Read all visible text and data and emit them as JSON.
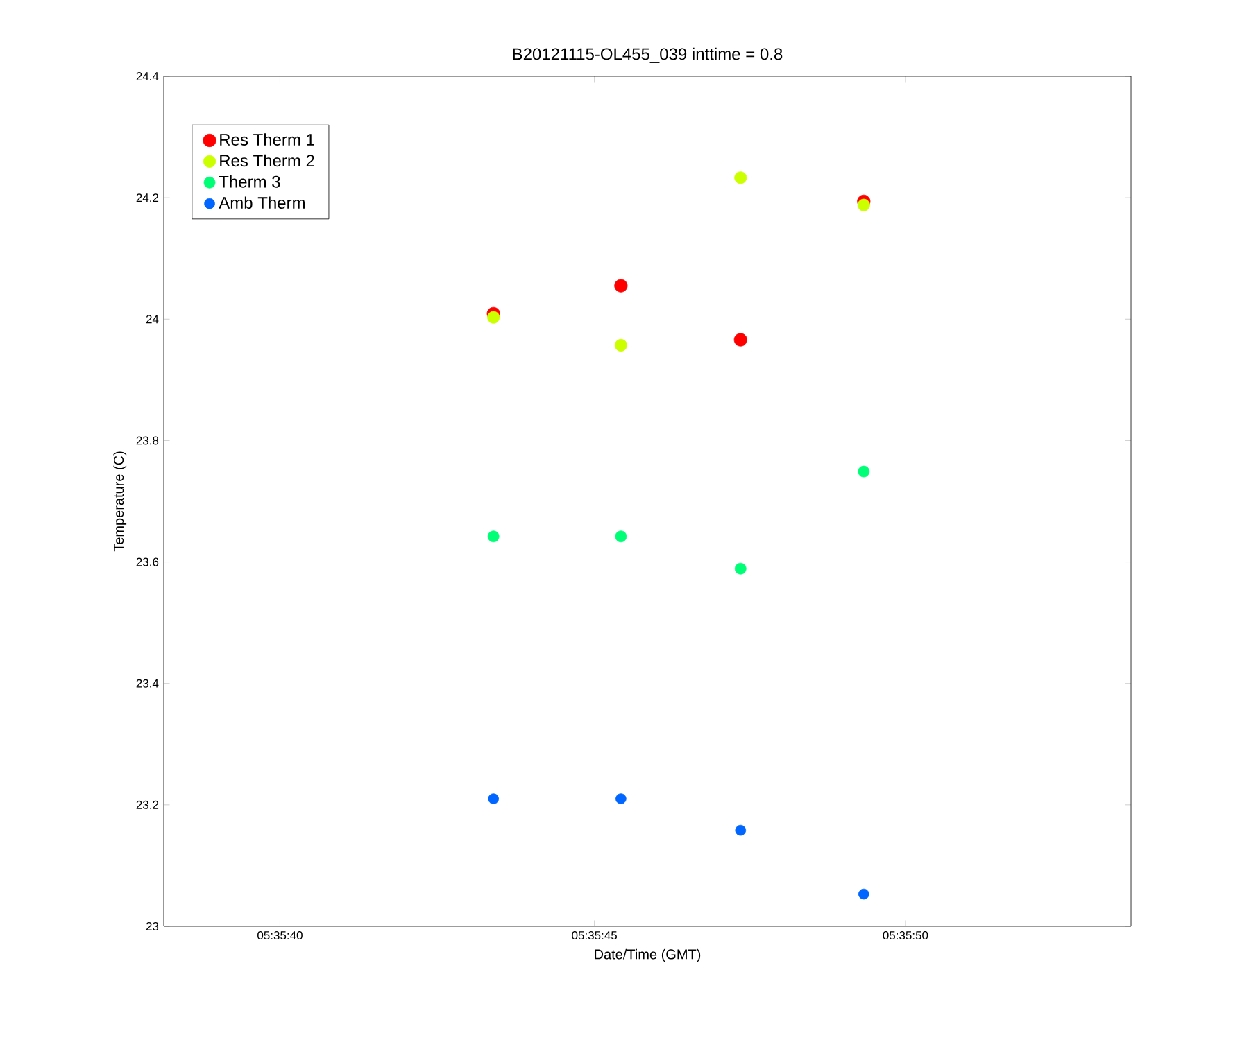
{
  "chart_data": {
    "type": "scatter",
    "title": "B20121115-OL455_039 inttime = 0.8",
    "xlabel": "Date/Time (GMT)",
    "ylabel": "Temperature (C)",
    "x": [
      5.595389,
      5.595958,
      5.596492,
      5.597042
    ],
    "series": [
      {
        "name": "Res Therm 1",
        "color": "#ff0000",
        "values": [
          24.009,
          24.055,
          23.966,
          24.194
        ]
      },
      {
        "name": "Res Therm 2",
        "color": "#ccff00",
        "values": [
          24.003,
          23.957,
          24.233,
          24.188
        ]
      },
      {
        "name": "Therm 3",
        "color": "#00ff77",
        "values": [
          23.642,
          23.642,
          23.589,
          23.749
        ]
      },
      {
        "name": "Amb Therm",
        "color": "#0066ff",
        "values": [
          23.21,
          23.21,
          23.158,
          23.053
        ]
      }
    ],
    "xlim": [
      5.593917,
      5.598239
    ],
    "xticks": [
      {
        "value": 5.594444,
        "label": "05:35:40"
      },
      {
        "value": 5.595833,
        "label": "05:35:45"
      },
      {
        "value": 5.597222,
        "label": "05:35:50"
      }
    ],
    "ylim": [
      23,
      24.4
    ],
    "yticks": [
      23,
      23.2,
      23.4,
      23.6,
      23.8,
      24,
      24.2,
      24.4
    ],
    "legend": "top left",
    "marker": "circle"
  }
}
